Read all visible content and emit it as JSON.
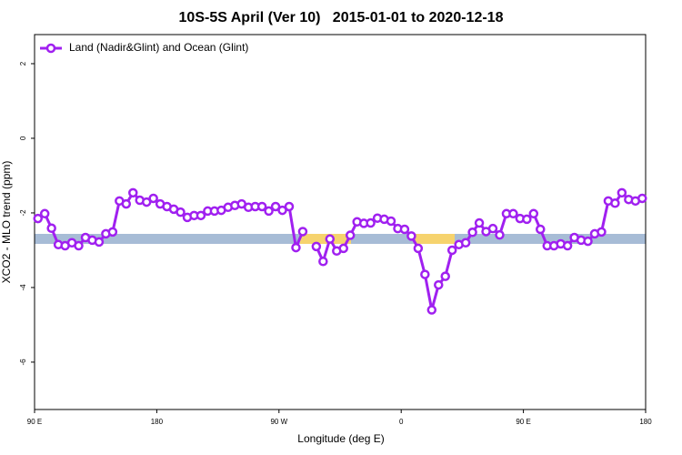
{
  "chart_data": {
    "type": "line",
    "title": "10S-5S April (Ver 10)   2015-01-01 to 2020-12-18",
    "xlabel": "Longitude (deg E)",
    "ylabel": "XCO2 - MLO trend (ppm)",
    "x": [
      92.5,
      97.5,
      102.5,
      107.5,
      112.5,
      117.5,
      122.5,
      127.5,
      132.5,
      137.5,
      142.5,
      147.5,
      152.5,
      157.5,
      162.5,
      167.5,
      172.5,
      177.5,
      182.5,
      187.5,
      192.5,
      197.5,
      202.5,
      207.5,
      212.5,
      217.5,
      222.5,
      227.5,
      232.5,
      237.5,
      242.5,
      247.5,
      252.5,
      257.5,
      262.5,
      267.5,
      272.5,
      277.5,
      282.5,
      287.5,
      292.5,
      297.5,
      302.5,
      307.5,
      312.5,
      317.5,
      322.5,
      327.5,
      332.5,
      337.5,
      342.5,
      347.5,
      352.5,
      357.5,
      362.5,
      367.5,
      372.5,
      377.5,
      382.5,
      387.5,
      392.5,
      397.5,
      402.5,
      407.5,
      412.5,
      417.5,
      422.5,
      427.5,
      432.5,
      437.5,
      442.5,
      447.5,
      452.5,
      457.5,
      462.5,
      467.5,
      472.5,
      477.5,
      482.5,
      487.5,
      492.5,
      497.5,
      502.5,
      507.5,
      512.5,
      517.5,
      522.5,
      527.5,
      532.5,
      537.5
    ],
    "series": [
      {
        "name": "Land (Nadir&Glint) and Ocean (Glint)",
        "color": "#a020f0",
        "values": [
          -2.15,
          -2.02,
          -2.41,
          -2.85,
          -2.88,
          -2.8,
          -2.88,
          -2.66,
          -2.73,
          -2.78,
          -2.56,
          -2.51,
          -1.68,
          -1.76,
          -1.46,
          -1.66,
          -1.71,
          -1.61,
          -1.76,
          -1.83,
          -1.9,
          -1.98,
          -2.12,
          -2.07,
          -2.07,
          -1.95,
          -1.95,
          -1.93,
          -1.85,
          -1.8,
          -1.76,
          -1.85,
          -1.83,
          -1.83,
          -1.95,
          -1.83,
          -1.93,
          -1.83,
          -2.93,
          -2.5,
          null,
          -2.9,
          -3.3,
          -2.7,
          -3.02,
          -2.95,
          -2.6,
          -2.24,
          -2.28,
          -2.27,
          -2.14,
          -2.17,
          -2.22,
          -2.42,
          -2.44,
          -2.62,
          -2.95,
          -3.65,
          -4.6,
          -3.93,
          -3.7,
          -3.0,
          -2.85,
          -2.8,
          -2.52,
          -2.27,
          -2.5,
          -2.42,
          -2.59,
          -2.02,
          -2.02,
          -2.15,
          -2.17,
          -2.02,
          -2.44,
          -2.88,
          -2.88,
          -2.83,
          -2.88,
          -2.66,
          -2.73,
          -2.76,
          -2.56,
          -2.51,
          -1.68,
          -1.74,
          -1.46,
          -1.64,
          -1.68,
          -1.61
        ]
      }
    ],
    "xlim": [
      90,
      540
    ],
    "ylim": [
      -7.27,
      2.78
    ],
    "xticks": [
      {
        "value": 90,
        "label": "90 E"
      },
      180,
      {
        "value": 270,
        "label": "90 W"
      },
      {
        "value": 360,
        "label": "0"
      },
      {
        "value": 450,
        "label": "90 E"
      },
      {
        "value": 540,
        "label": "180"
      }
    ],
    "yticks": [
      -6,
      -4,
      -2,
      0,
      2
    ],
    "legend": "upper left"
  }
}
